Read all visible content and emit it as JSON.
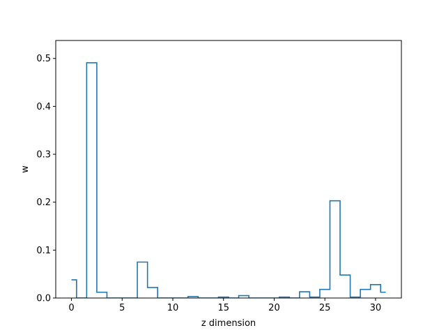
{
  "chart_data": {
    "type": "line",
    "style": "steps-mid",
    "title": "",
    "xlabel": "z dimension",
    "ylabel": "w",
    "xlim": [
      -1.55,
      32.55
    ],
    "ylim": [
      0,
      0.5375
    ],
    "xticks": [
      0,
      5,
      10,
      15,
      20,
      25,
      30
    ],
    "yticks": [
      0.0,
      0.1,
      0.2,
      0.3,
      0.4,
      0.5
    ],
    "xtick_labels": [
      "0",
      "5",
      "10",
      "15",
      "20",
      "25",
      "30"
    ],
    "ytick_labels": [
      "0.0",
      "0.1",
      "0.2",
      "0.3",
      "0.4",
      "0.5"
    ],
    "grid": false,
    "color": "#1f77b4",
    "series": [
      {
        "x": [
          0,
          1,
          2,
          3,
          4,
          5,
          6,
          7,
          8,
          9,
          10,
          11,
          12,
          13,
          14,
          15,
          16,
          17,
          18,
          19,
          20,
          21,
          22,
          23,
          24,
          25,
          26,
          27,
          28,
          29,
          30,
          31
        ],
        "values": [
          0.038,
          0.0,
          0.491,
          0.012,
          0.0,
          0.0,
          0.0,
          0.075,
          0.022,
          0.0,
          0.0,
          0.0,
          0.003,
          0.0,
          0.0,
          0.002,
          0.0,
          0.005,
          0.0,
          0.0,
          0.0,
          0.002,
          0.0,
          0.013,
          0.002,
          0.018,
          0.203,
          0.048,
          0.002,
          0.018,
          0.028,
          0.012
        ]
      }
    ]
  }
}
